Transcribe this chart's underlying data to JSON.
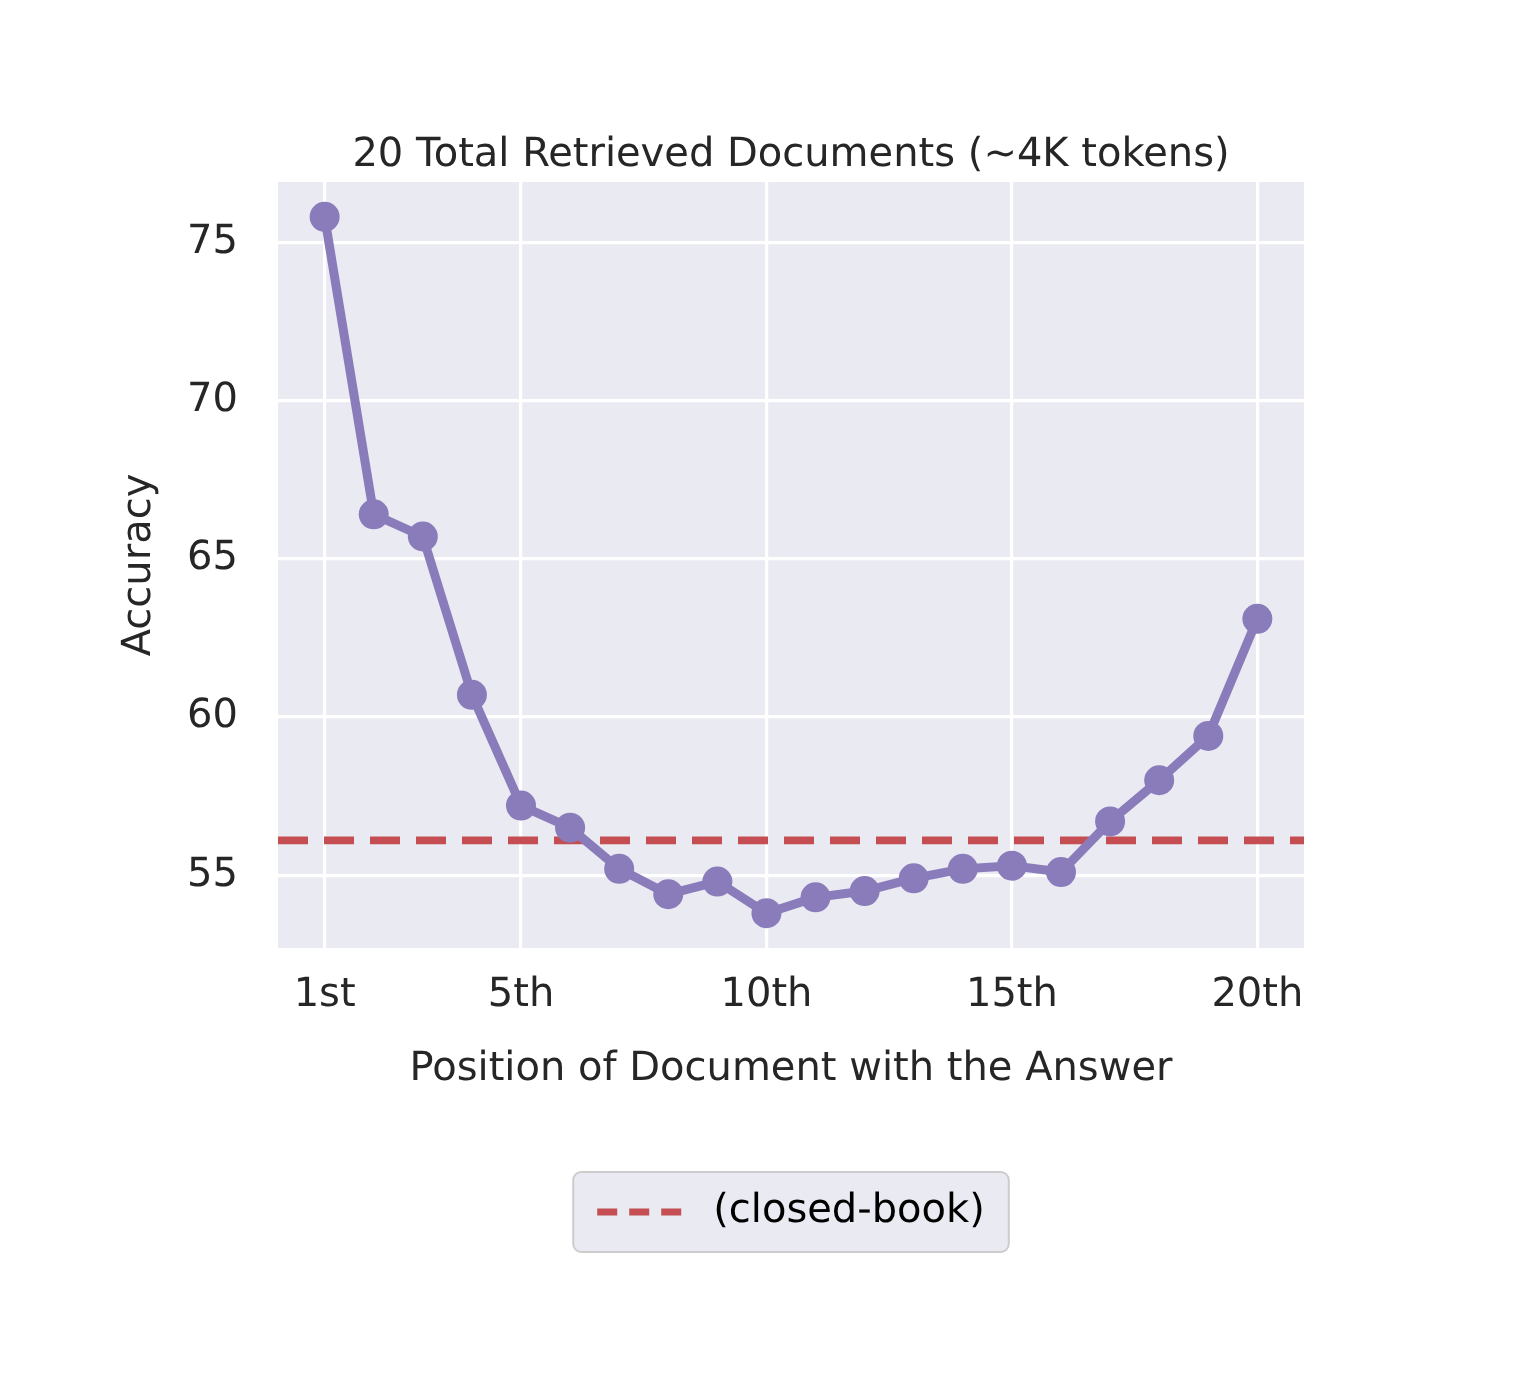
{
  "chart_data": {
    "type": "line",
    "title": "20 Total Retrieved Documents (~4K tokens)",
    "xlabel": "Position of Document with the Answer",
    "ylabel": "Accuracy",
    "x": [
      1,
      2,
      3,
      4,
      5,
      6,
      7,
      8,
      9,
      10,
      11,
      12,
      13,
      14,
      15,
      16,
      17,
      18,
      19,
      20
    ],
    "series": [
      {
        "color": "#8a7cbb",
        "values": [
          75.8,
          66.4,
          65.7,
          60.7,
          57.2,
          56.5,
          55.2,
          54.4,
          54.8,
          53.8,
          54.3,
          54.5,
          54.9,
          55.2,
          55.3,
          55.1,
          56.7,
          58.0,
          59.4,
          63.1
        ]
      }
    ],
    "xlim": [
      0.05,
      20.95
    ],
    "xticks": [
      {
        "value": 1,
        "label": "1st"
      },
      {
        "value": 5,
        "label": "5th"
      },
      {
        "value": 10,
        "label": "10th"
      },
      {
        "value": 15,
        "label": "15th"
      },
      {
        "value": 20,
        "label": "20th"
      }
    ],
    "ylim": [
      52.7,
      76.9
    ],
    "yticks": [
      55,
      60,
      65,
      70,
      75
    ],
    "ref_lines": [
      {
        "axis": "y",
        "value": 56.1,
        "label": "(closed-book)",
        "color": "#c44e52",
        "line_style": "dashed"
      }
    ],
    "grid": true,
    "legend": "bottom",
    "marker": "circle"
  }
}
